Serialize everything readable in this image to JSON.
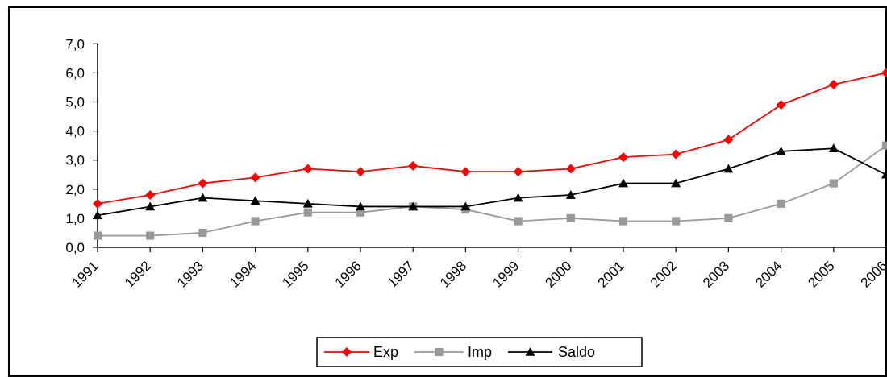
{
  "chart_data": {
    "type": "line",
    "categories": [
      "1991",
      "1992",
      "1993",
      "1994",
      "1995",
      "1996",
      "1997",
      "1998",
      "1999",
      "2000",
      "2001",
      "2002",
      "2003",
      "2004",
      "2005",
      "2006"
    ],
    "ytick_labels": [
      "0,0",
      "1,0",
      "2,0",
      "3,0",
      "4,0",
      "5,0",
      "6,0",
      "7,0"
    ],
    "ylim": [
      0,
      7
    ],
    "legend_position": "bottom",
    "series": [
      {
        "name": "Exp",
        "color": "#ff0000",
        "marker": "diamond",
        "values": [
          1.5,
          1.8,
          2.2,
          2.4,
          2.7,
          2.6,
          2.8,
          2.6,
          2.6,
          2.7,
          3.1,
          3.2,
          3.7,
          4.9,
          5.6,
          6.0
        ]
      },
      {
        "name": "Imp",
        "color": "#999999",
        "marker": "square",
        "values": [
          0.4,
          0.4,
          0.5,
          0.9,
          1.2,
          1.2,
          1.4,
          1.3,
          0.9,
          1.0,
          0.9,
          0.9,
          1.0,
          1.5,
          2.2,
          3.5
        ]
      },
      {
        "name": "Saldo",
        "color": "#000000",
        "marker": "triangle",
        "values": [
          1.1,
          1.4,
          1.7,
          1.6,
          1.5,
          1.4,
          1.4,
          1.4,
          1.7,
          1.8,
          2.2,
          2.2,
          2.7,
          3.3,
          3.4,
          2.5
        ]
      }
    ]
  }
}
